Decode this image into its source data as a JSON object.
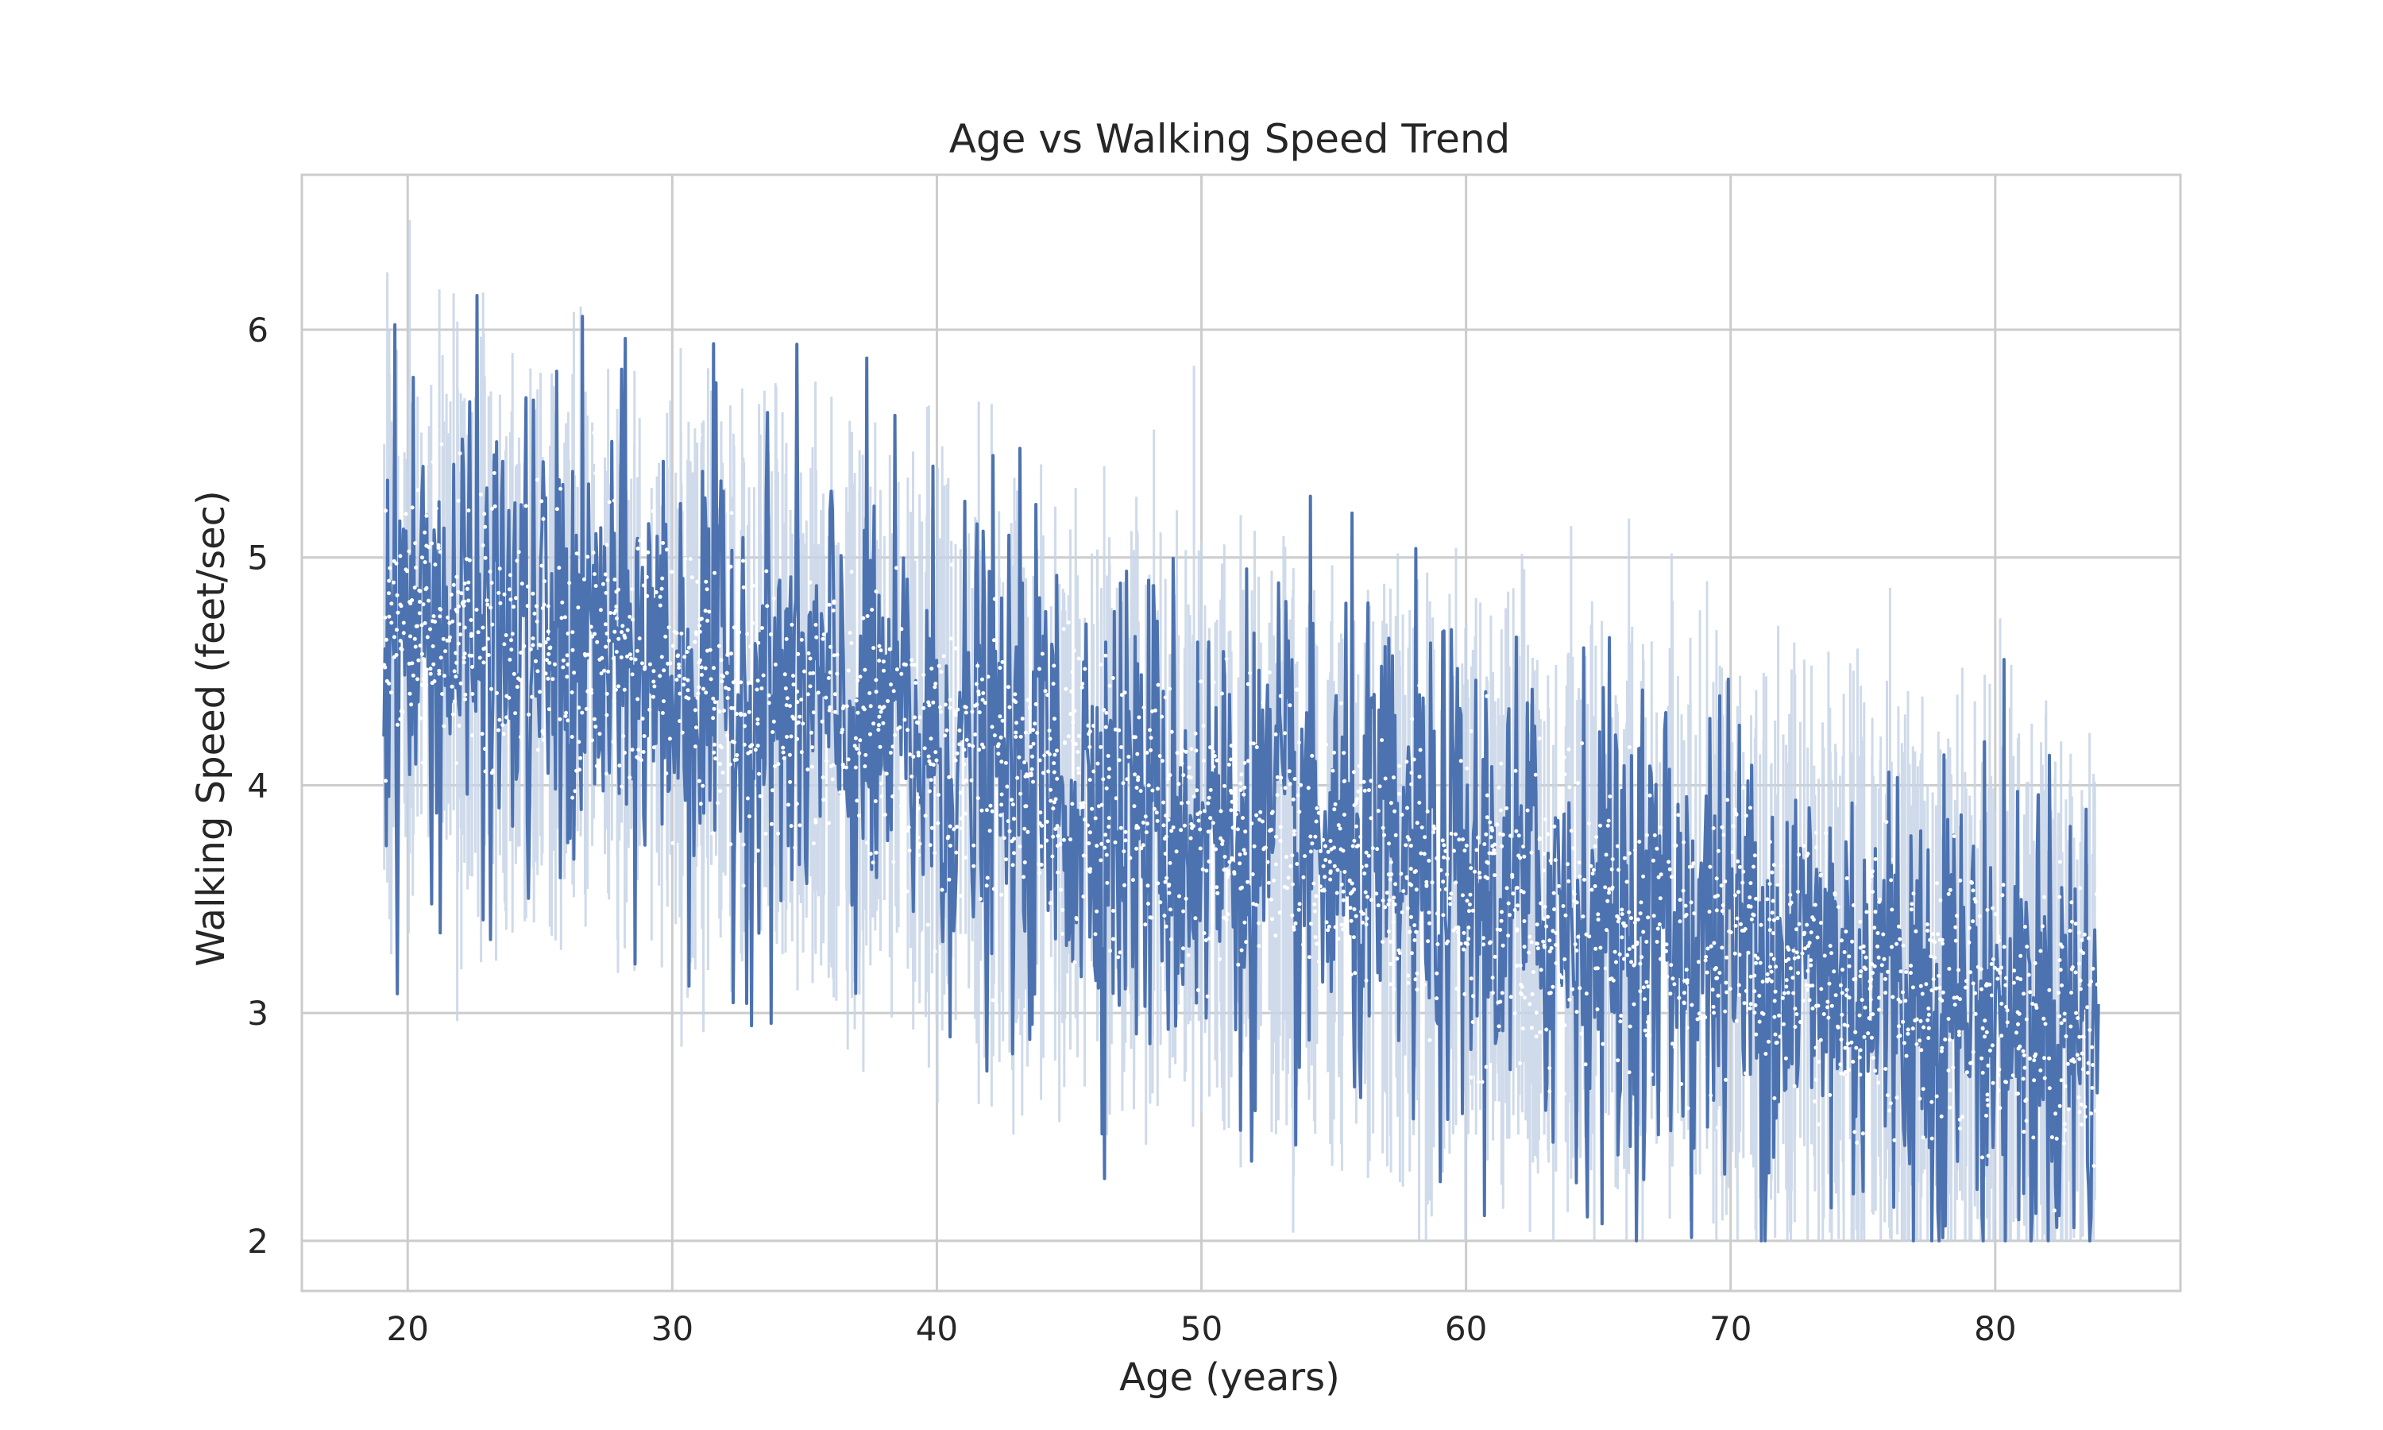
{
  "chart_data": {
    "type": "line",
    "title": "Age vs Walking Speed Trend",
    "xlabel": "Age (years)",
    "ylabel": "Walking Speed (feet/sec)",
    "xlim": [
      16,
      87
    ],
    "ylim": [
      1.78,
      6.68
    ],
    "xticks": [
      20,
      30,
      40,
      50,
      60,
      70,
      80
    ],
    "yticks": [
      2,
      3,
      4,
      5,
      6
    ],
    "grid": true,
    "legend": "none",
    "x_range": [
      19.1,
      83.9
    ],
    "trend": {
      "description_points": [
        {
          "age": 19.5,
          "mean_speed": 4.7
        },
        {
          "age": 30,
          "mean_speed": 4.5
        },
        {
          "age": 40,
          "mean_speed": 4.15
        },
        {
          "age": 50,
          "mean_speed": 3.8
        },
        {
          "age": 60,
          "mean_speed": 3.55
        },
        {
          "age": 70,
          "mean_speed": 3.3
        },
        {
          "age": 80,
          "mean_speed": 3.0
        },
        {
          "age": 83.9,
          "mean_speed": 2.95
        }
      ],
      "band_half_width": 0.7,
      "range_clip": [
        2.0,
        6.15
      ]
    },
    "colors": {
      "line": "#4c72b0",
      "band": "#c7d3e6",
      "points": "#ffffff",
      "grid": "#cccccc",
      "frame": "#cccccc"
    }
  }
}
